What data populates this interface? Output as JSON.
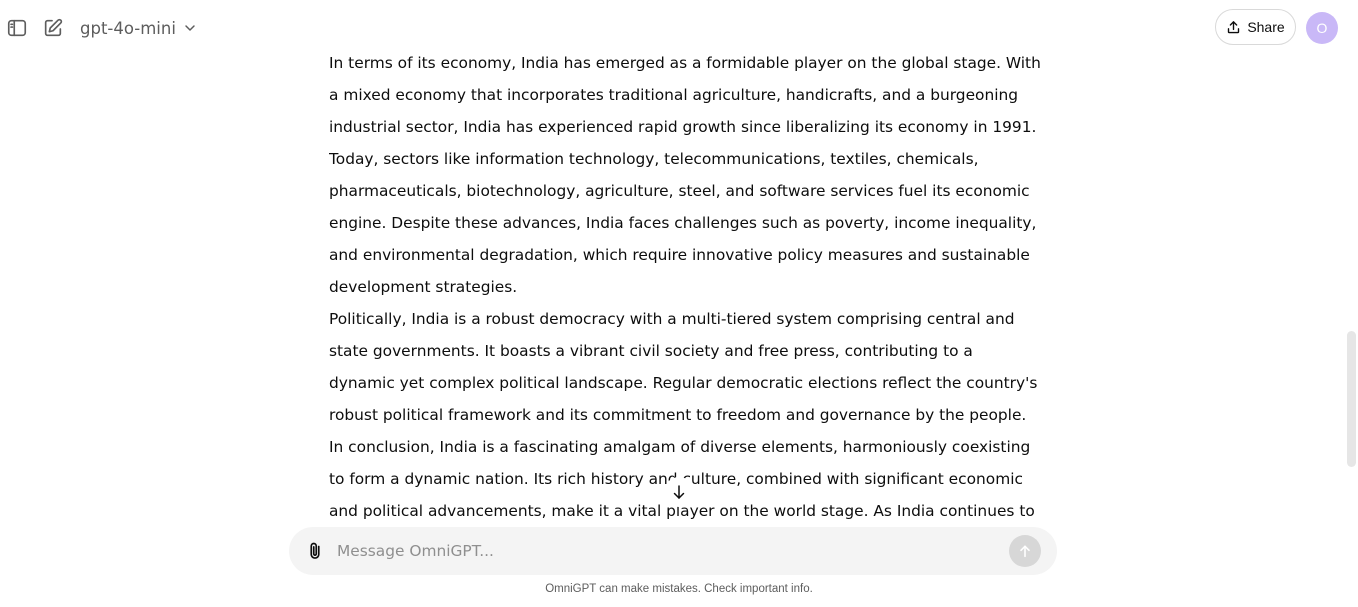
{
  "header": {
    "model": "gpt-4o-mini",
    "share_label": "Share",
    "avatar_initial": "O"
  },
  "message": {
    "paragraphs": [
      "In terms of its economy, India has emerged as a formidable player on the global stage. With a mixed economy that incorporates traditional agriculture, handicrafts, and a burgeoning industrial sector, India has experienced rapid growth since liberalizing its economy in 1991. Today, sectors like information technology, telecommunications, textiles, chemicals, pharmaceuticals, biotechnology, agriculture, steel, and software services fuel its economic engine. Despite these advances, India faces challenges such as poverty, income inequality, and environmental degradation, which require innovative policy measures and sustainable development strategies.",
      "Politically, India is a robust democracy with a multi-tiered system comprising central and state governments. It boasts a vibrant civil society and free press, contributing to a dynamic yet complex political landscape. Regular democratic elections reflect the country's robust political framework and its commitment to freedom and governance by the people.",
      "In conclusion, India is a fascinating amalgam of diverse elements, harmoniously coexisting to form a dynamic nation. Its rich history and culture, combined with significant economic and political advancements, make it a vital player on the world stage. As India continues to grapple"
    ]
  },
  "composer": {
    "placeholder": "Message OmniGPT..."
  },
  "footer": {
    "disclaimer": "OmniGPT can make mistakes. Check important info."
  },
  "icons": {
    "sidebar_toggle": "sidebar-toggle-icon",
    "new_chat": "new-chat-icon",
    "chevron": "chevron-down-icon",
    "share": "share-upload-icon",
    "scroll_down": "arrow-down-icon",
    "attach": "paperclip-icon",
    "send": "arrow-up-icon"
  },
  "colors": {
    "avatar": "#c9b8f7",
    "composer_bg": "#f4f4f4",
    "send_disabled": "#d7d7d7"
  }
}
